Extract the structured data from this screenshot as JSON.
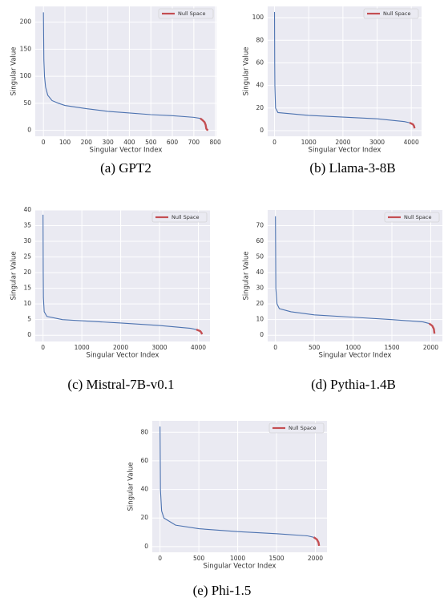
{
  "chart_data": [
    {
      "type": "line",
      "caption": "(a) GPT2",
      "xlabel": "Singular Vector Index",
      "ylabel": "Singular Value",
      "xlim": [
        -38,
        805
      ],
      "xticks": [
        0,
        100,
        200,
        300,
        400,
        500,
        600,
        700,
        800
      ],
      "ylim": [
        -11,
        229
      ],
      "yticks": [
        0,
        50,
        100,
        150,
        200
      ],
      "grid": true,
      "legend": "upper right",
      "series": [
        {
          "color": "#4c72b0",
          "x": [
            0,
            2,
            5,
            10,
            20,
            40,
            70,
            100,
            200,
            300,
            400,
            500,
            600,
            700,
            730
          ],
          "values": [
            218,
            130,
            100,
            80,
            65,
            55,
            50,
            46,
            40,
            35,
            32,
            29,
            27,
            24,
            22
          ]
        },
        {
          "name": "Null Space",
          "color": "#c44e52",
          "x": [
            730,
            740,
            750,
            755,
            758,
            762,
            767
          ],
          "values": [
            22,
            19,
            15,
            10,
            3,
            1,
            0.5
          ]
        }
      ]
    },
    {
      "type": "line",
      "caption": "(b) Llama-3-8B",
      "xlabel": "Singular Vector Index",
      "ylabel": "Singular Value",
      "xlim": [
        -200,
        4300
      ],
      "xticks": [
        0,
        1000,
        2000,
        3000,
        4000
      ],
      "ylim": [
        -5,
        110
      ],
      "yticks": [
        0,
        20,
        40,
        60,
        80,
        100
      ],
      "grid": true,
      "legend": "upper right",
      "series": [
        {
          "color": "#4c72b0",
          "x": [
            0,
            5,
            10,
            30,
            100,
            1000,
            2000,
            3000,
            3800,
            3950
          ],
          "values": [
            105,
            60,
            40,
            20,
            16,
            13.5,
            12,
            10.5,
            8,
            7
          ]
        },
        {
          "name": "Null Space",
          "color": "#c44e52",
          "x": [
            3950,
            4050,
            4080,
            4096
          ],
          "values": [
            7,
            5.5,
            4,
            2
          ]
        }
      ]
    },
    {
      "type": "line",
      "caption": "(c) Mistral-7B-v0.1",
      "xlabel": "Singular Vector Index",
      "ylabel": "Singular Value",
      "xlim": [
        -200,
        4300
      ],
      "xticks": [
        0,
        1000,
        2000,
        3000,
        4000
      ],
      "ylim": [
        -2,
        40
      ],
      "yticks": [
        0,
        5,
        10,
        15,
        20,
        25,
        30,
        35,
        40
      ],
      "grid": true,
      "legend": "upper right",
      "series": [
        {
          "color": "#4c72b0",
          "x": [
            0,
            5,
            10,
            30,
            100,
            500,
            1000,
            2000,
            3000,
            3800,
            3950
          ],
          "values": [
            38.5,
            20,
            12,
            7.5,
            6,
            5,
            4.6,
            3.9,
            3.1,
            2.2,
            1.8
          ]
        },
        {
          "name": "Null Space",
          "color": "#c44e52",
          "x": [
            3950,
            4050,
            4080,
            4096
          ],
          "values": [
            1.8,
            1.3,
            0.8,
            0.3
          ]
        }
      ]
    },
    {
      "type": "line",
      "caption": "(d) Pythia-1.4B",
      "xlabel": "Singular Vector Index",
      "ylabel": "Singular Value",
      "xlim": [
        -100,
        2150
      ],
      "xticks": [
        0,
        500,
        1000,
        1500,
        2000
      ],
      "ylim": [
        -4,
        80
      ],
      "yticks": [
        0,
        10,
        20,
        30,
        40,
        50,
        60,
        70
      ],
      "grid": true,
      "legend": "upper right",
      "series": [
        {
          "color": "#4c72b0",
          "x": [
            0,
            5,
            20,
            50,
            200,
            500,
            1000,
            1500,
            1900,
            1980
          ],
          "values": [
            76,
            30,
            20,
            17,
            15,
            13,
            11.5,
            10,
            8.5,
            7.5
          ]
        },
        {
          "name": "Null Space",
          "color": "#c44e52",
          "x": [
            1980,
            2020,
            2040,
            2048
          ],
          "values": [
            7.5,
            6,
            4,
            1
          ]
        }
      ]
    },
    {
      "type": "line",
      "caption": "(e) Phi-1.5",
      "xlabel": "Singular Vector Index",
      "ylabel": "Singular Value",
      "xlim": [
        -100,
        2150
      ],
      "xticks": [
        0,
        500,
        1000,
        1500,
        2000
      ],
      "ylim": [
        -4,
        88
      ],
      "yticks": [
        0,
        20,
        40,
        60,
        80
      ],
      "grid": true,
      "legend": "upper right",
      "series": [
        {
          "color": "#4c72b0",
          "x": [
            0,
            5,
            20,
            50,
            200,
            500,
            1000,
            1500,
            1900,
            1980
          ],
          "values": [
            84,
            40,
            25,
            20,
            15,
            12.5,
            10.5,
            9,
            7.5,
            6.5
          ]
        },
        {
          "name": "Null Space",
          "color": "#c44e52",
          "x": [
            1980,
            2020,
            2040,
            2048
          ],
          "values": [
            6.5,
            5,
            3,
            0.5
          ]
        }
      ]
    }
  ]
}
